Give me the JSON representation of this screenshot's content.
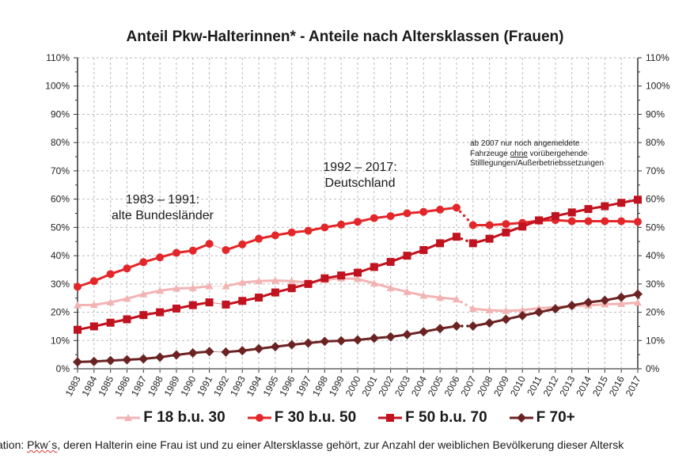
{
  "chart_data": {
    "type": "line",
    "title": "Anteil Pkw-Halterinnen* - Anteile nach Altersklassen (Frauen)",
    "xlabel": "",
    "ylabel": "",
    "ylim": [
      0,
      110
    ],
    "yticks": [
      "0%",
      "10%",
      "20%",
      "30%",
      "40%",
      "50%",
      "60%",
      "70%",
      "80%",
      "90%",
      "100%",
      "110%"
    ],
    "grid": true,
    "legend_position": "bottom",
    "x": [
      1983,
      1984,
      1985,
      1986,
      1987,
      1988,
      1989,
      1990,
      1991,
      1992,
      1993,
      1994,
      1995,
      1996,
      1997,
      1998,
      1999,
      2000,
      2001,
      2002,
      2003,
      2004,
      2005,
      2006,
      2007,
      2008,
      2009,
      2010,
      2011,
      2012,
      2013,
      2014,
      2015,
      2016,
      2017
    ],
    "series": [
      {
        "name": "F 18 b.u. 30",
        "color": "#f2b3b3",
        "marker": "triangle",
        "values": [
          22.5,
          22.6,
          23.5,
          24.8,
          26.4,
          27.6,
          28.4,
          28.6,
          29.2,
          29.2,
          30.5,
          31,
          31.2,
          31,
          30.5,
          31.5,
          32,
          31.8,
          30.2,
          28.6,
          27.2,
          25.9,
          25.2,
          24.6,
          21.2,
          20.7,
          20.5,
          20.7,
          21.4,
          21.8,
          22.2,
          22.4,
          22.8,
          23,
          23.4
        ]
      },
      {
        "name": "F 30 b.u. 50",
        "color": "#e3262a",
        "marker": "circle",
        "values": [
          29,
          31,
          33.5,
          35.5,
          37.7,
          39.4,
          41,
          41.8,
          44.2,
          42,
          44,
          46,
          47.2,
          48.2,
          48.8,
          50,
          51,
          52,
          53.3,
          54,
          55,
          55.5,
          56.3,
          57,
          50.8,
          50.8,
          51.2,
          51.6,
          52.4,
          52.6,
          52.2,
          52.2,
          52.2,
          52.2,
          52
        ]
      },
      {
        "name": "F 50 b.u. 70",
        "color": "#c1121f",
        "marker": "square",
        "values": [
          13.8,
          15,
          16.3,
          17.5,
          19,
          20,
          21.3,
          22.5,
          23.5,
          22.7,
          24,
          25.2,
          27,
          28.5,
          30,
          32,
          33,
          34,
          36,
          37.8,
          40,
          42,
          44.4,
          46.7,
          44.4,
          46,
          48.2,
          50.3,
          52.5,
          54,
          55.3,
          56.5,
          57.5,
          58.7,
          59.8
        ]
      },
      {
        "name": "F 70+",
        "color": "#6b2222",
        "marker": "diamond",
        "values": [
          2.4,
          2.6,
          2.9,
          3.2,
          3.5,
          4.1,
          4.9,
          5.6,
          6.1,
          5.9,
          6.4,
          7.1,
          7.8,
          8.5,
          9.1,
          9.7,
          9.9,
          10.2,
          10.8,
          11.3,
          12.1,
          13.1,
          14.2,
          15.1,
          15.1,
          16.2,
          17.5,
          18.8,
          20,
          21.2,
          22.4,
          23.5,
          24.2,
          25.3,
          26.4
        ]
      }
    ],
    "annotations": {
      "period1": [
        "1983 – 1991:",
        "alte Bundesländer"
      ],
      "period2": [
        "1992 – 2017:",
        "Deutschland"
      ],
      "note_line1": "ab 2007 nur noch angemeldete",
      "note_line2_pre": "Fahrzeuge ",
      "note_line2_u": "ohne",
      "note_line2_post": " vorübergehende",
      "note_line3": "Stilllegungen/Außerbetriebssetzungen"
    },
    "caption_pre": "ation:  ",
    "caption_pkw": "Pkw´s",
    "caption_post": ", deren Halterin eine Frau ist und zu einer Altersklasse gehört, zur Anzahl der weiblichen Bevölkerung dieser Altersk"
  }
}
